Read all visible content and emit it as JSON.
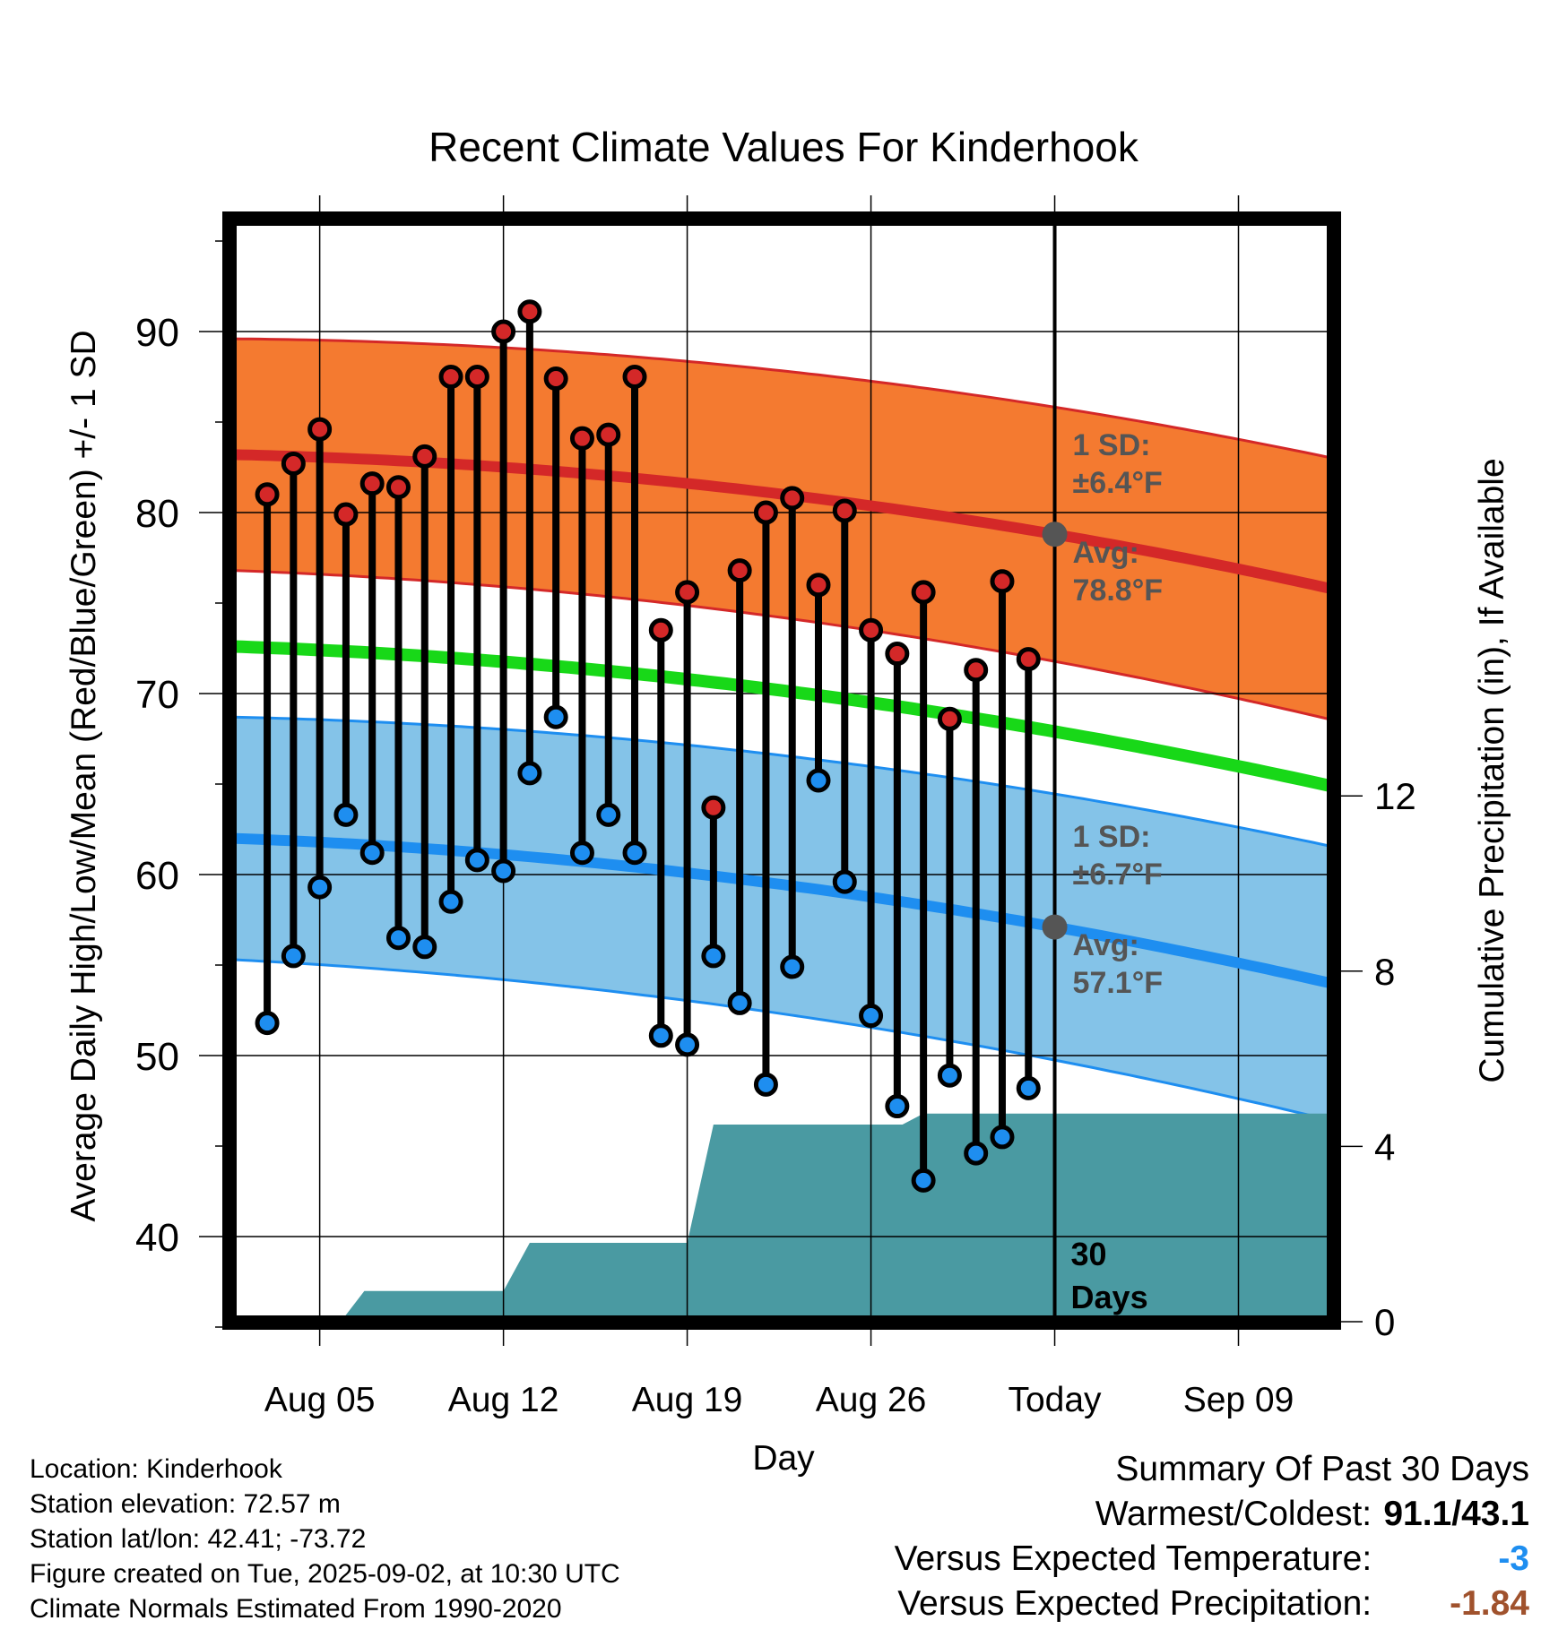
{
  "chart_data": {
    "type": "range-dot",
    "title": "Recent Climate Values For Kinderhook",
    "xlabel": "Day",
    "ylabel": "Average Daily High/Low/Mean (Red/Blue/Green) +/- 1 SD",
    "y2label": "Cumulative Precipitation (in), If Available",
    "ylim": [
      35,
      97
    ],
    "y_ticks": [
      40,
      50,
      60,
      70,
      80,
      90
    ],
    "y2lim": [
      0,
      29.3
    ],
    "y2_ticks": [
      0,
      4,
      8,
      12
    ],
    "x_range_days": [
      -31.3,
      10.5
    ],
    "x_ticks": [
      {
        "label": "Aug 05",
        "day": -28
      },
      {
        "label": "Aug 12",
        "day": -21
      },
      {
        "label": "Aug 19",
        "day": -14
      },
      {
        "label": "Aug 26",
        "day": -7
      },
      {
        "label": "Today",
        "day": 0
      },
      {
        "label": "Sep 09",
        "day": 7
      }
    ],
    "grid": true,
    "dates": [
      "Aug 03",
      "Aug 04",
      "Aug 05",
      "Aug 06",
      "Aug 07",
      "Aug 08",
      "Aug 09",
      "Aug 10",
      "Aug 11",
      "Aug 12",
      "Aug 13",
      "Aug 14",
      "Aug 15",
      "Aug 16",
      "Aug 17",
      "Aug 18",
      "Aug 19",
      "Aug 20",
      "Aug 21",
      "Aug 22",
      "Aug 23",
      "Aug 24",
      "Aug 25",
      "Aug 26",
      "Aug 27",
      "Aug 28",
      "Aug 29",
      "Aug 30",
      "Aug 31",
      "Sep 01"
    ],
    "highs": [
      81.0,
      82.7,
      84.6,
      79.9,
      81.6,
      81.4,
      83.1,
      87.5,
      87.5,
      90.0,
      91.1,
      87.4,
      84.1,
      84.3,
      87.5,
      73.5,
      75.6,
      63.7,
      76.8,
      80.0,
      80.8,
      76.0,
      80.1,
      73.5,
      72.2,
      75.6,
      68.6,
      71.3,
      76.2,
      71.9
    ],
    "lows": [
      51.8,
      55.5,
      59.3,
      63.3,
      61.2,
      56.5,
      56.0,
      58.5,
      60.8,
      60.2,
      65.6,
      68.7,
      61.2,
      63.3,
      61.2,
      51.1,
      50.6,
      55.5,
      52.9,
      48.4,
      54.9,
      65.2,
      59.6,
      52.2,
      47.2,
      43.1,
      48.9,
      44.6,
      45.5,
      48.2
    ],
    "normal_high": {
      "start": 83.2,
      "today": 78.8,
      "end": 75.8,
      "sd": 6.4
    },
    "normal_low": {
      "start": 62.0,
      "today": 57.1,
      "end": 54.0,
      "sd": 6.7
    },
    "normal_mean": {
      "start": 72.6,
      "today": 67.9,
      "end": 64.9
    },
    "precip_cumulative": [
      {
        "day": -31.3,
        "in": 0.0
      },
      {
        "day": -27.2,
        "in": 0.0
      },
      {
        "day": -26.3,
        "in": 0.7
      },
      {
        "day": -21.0,
        "in": 0.7
      },
      {
        "day": -20.0,
        "in": 1.8
      },
      {
        "day": -14.0,
        "in": 1.8
      },
      {
        "day": -13.0,
        "in": 4.5
      },
      {
        "day": -5.8,
        "in": 4.5
      },
      {
        "day": -5.0,
        "in": 4.75
      },
      {
        "day": 10.5,
        "in": 4.75
      }
    ],
    "annotations": {
      "high_sd": "1 SD:",
      "high_sd_value": "±6.4°F",
      "high_avg": "Avg:",
      "high_avg_value": "78.8°F",
      "low_sd": "1 SD:",
      "low_sd_value": "±6.7°F",
      "low_avg": "Avg:",
      "low_avg_value": "57.1°F",
      "days_num": "30",
      "days_word": "Days"
    },
    "colors": {
      "high_band": "#f47a30",
      "high_line": "#d42828",
      "low_band": "#84c3e8",
      "low_line": "#1e8ef0",
      "mean_line": "#18d818",
      "precip": "#4a9aa2",
      "high_dot": "#d42828",
      "low_dot": "#1e8ef0",
      "avg_dot": "#555555",
      "annotation_text": "#555555"
    }
  },
  "meta": {
    "location": "Location: Kinderhook",
    "elevation": "Station elevation: 72.57 m",
    "latlon": "Station lat/lon: 42.41; -73.72",
    "created": "Figure created on Tue, 2025-09-02, at 10:30 UTC",
    "normals": "Climate Normals Estimated From 1990-2020"
  },
  "summary": {
    "title": "Summary Of Past 30 Days",
    "warm_cold_label": "Warmest/Coldest:",
    "warm_cold_value": "91.1/43.1",
    "temp_label": "Versus Expected Temperature:",
    "temp_value": "-3",
    "precip_label": "Versus Expected Precipitation:",
    "precip_value": "-1.84"
  }
}
